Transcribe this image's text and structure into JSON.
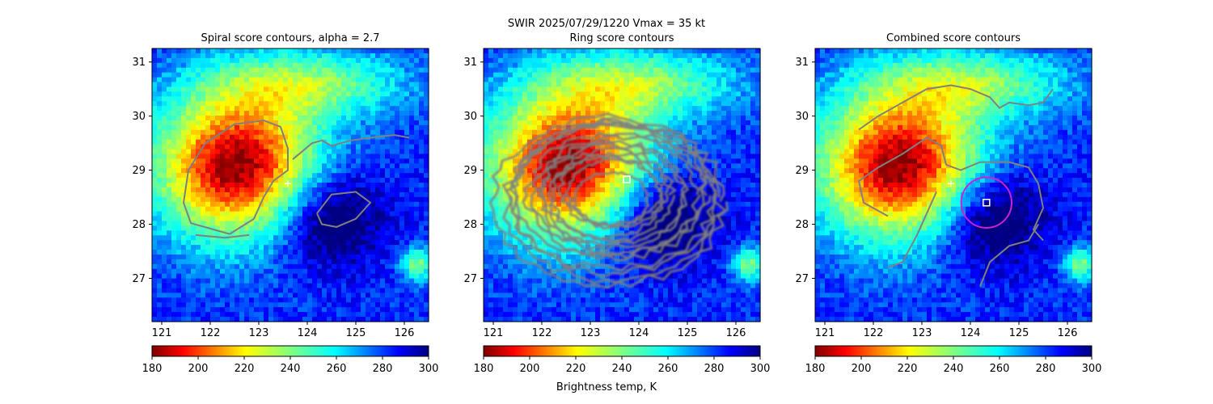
{
  "figure": {
    "suptitle": "SWIR  2025/07/29/1220    Vmax = 35 kt",
    "colorbar_label": "Brightness temp, K"
  },
  "chart_data": [
    {
      "type": "heatmap",
      "title": "Spiral score contours, alpha =  2.7",
      "xticks": [
        121,
        122,
        123,
        124,
        125,
        126
      ],
      "yticks": [
        27,
        28,
        29,
        30,
        31
      ],
      "xlim": [
        120.8,
        126.5
      ],
      "ylim": [
        26.2,
        31.25
      ],
      "colorbar": {
        "cmap": "jet_r",
        "range": [
          180,
          300
        ],
        "ticks": [
          180,
          200,
          220,
          240,
          260,
          280,
          300
        ]
      },
      "markers": [
        {
          "kind": "plus",
          "lon": 123.6,
          "lat": 28.75,
          "color": "#ffffff"
        }
      ],
      "contours": "spiral"
    },
    {
      "type": "heatmap",
      "title": "Ring score contours",
      "xticks": [
        121,
        122,
        123,
        124,
        125,
        126
      ],
      "yticks": [
        27,
        28,
        29,
        30,
        31
      ],
      "xlim": [
        120.8,
        126.5
      ],
      "ylim": [
        26.2,
        31.25
      ],
      "colorbar": {
        "cmap": "jet_r",
        "range": [
          180,
          300
        ],
        "ticks": [
          180,
          200,
          220,
          240,
          260,
          280,
          300
        ]
      },
      "markers": [
        {
          "kind": "square",
          "lon": 123.75,
          "lat": 28.83,
          "color": "#ffffff"
        }
      ],
      "contours": "ring"
    },
    {
      "type": "heatmap",
      "title": "Combined score contours",
      "xticks": [
        121,
        122,
        123,
        124,
        125,
        126
      ],
      "yticks": [
        27,
        28,
        29,
        30,
        31
      ],
      "xlim": [
        120.8,
        126.5
      ],
      "ylim": [
        26.2,
        31.25
      ],
      "colorbar": {
        "cmap": "jet_r",
        "range": [
          180,
          300
        ],
        "ticks": [
          180,
          200,
          220,
          240,
          260,
          280,
          300
        ]
      },
      "markers": [
        {
          "kind": "plus",
          "lon": 123.6,
          "lat": 28.75,
          "color": "#ffffff"
        },
        {
          "kind": "square",
          "lon": 124.33,
          "lat": 28.4,
          "color": "#ffffff"
        },
        {
          "kind": "circle",
          "lon": 124.33,
          "lat": 28.4,
          "radius_deg": 0.52,
          "color": "#cc22cc"
        }
      ],
      "contours": "combined"
    }
  ]
}
